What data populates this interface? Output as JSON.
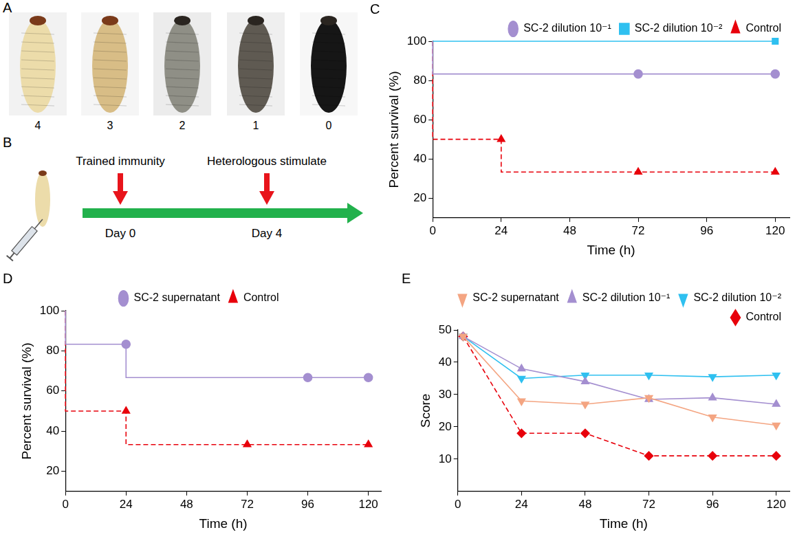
{
  "figure": {
    "A": {
      "panel": "A",
      "scores": [
        4,
        3,
        2,
        1,
        0
      ]
    },
    "B": {
      "panel": "B",
      "events": [
        {
          "label": "Trained immunity",
          "day": "Day 0"
        },
        {
          "label": "Heterologous stimulate",
          "day": "Day 4"
        }
      ]
    }
  },
  "chart_data": [
    {
      "panel": "C",
      "type": "step",
      "x_label": "Time (h)",
      "y_label": "Percent survival (%)",
      "xlim": [
        0,
        125
      ],
      "xticks": [
        0,
        24,
        48,
        72,
        96,
        120
      ],
      "ylim": [
        10,
        100
      ],
      "yticks": [
        20,
        40,
        60,
        80,
        100
      ],
      "grid": false,
      "legend": "top-right",
      "series": [
        {
          "name": "SC-2 dilution 10⁻¹",
          "color": "#a48fd0",
          "marker": "circle",
          "line_style": "solid",
          "x": [
            0,
            72,
            120
          ],
          "values": [
            100,
            83.3,
            83.3
          ]
        },
        {
          "name": "SC-2 dilution 10⁻²",
          "color": "#2fc0f0",
          "marker": "square",
          "line_style": "solid",
          "x": [
            0,
            120
          ],
          "values": [
            100,
            100
          ]
        },
        {
          "name": "Control",
          "color": "#e8000b",
          "marker": "triangle",
          "line_style": "dashed",
          "x": [
            0,
            24,
            72,
            120
          ],
          "values": [
            100,
            50,
            33.3,
            33.3
          ]
        }
      ]
    },
    {
      "panel": "D",
      "type": "step",
      "x_label": "Time (h)",
      "y_label": "Percent survival (%)",
      "xlim": [
        0,
        125
      ],
      "xticks": [
        0,
        24,
        48,
        72,
        96,
        120
      ],
      "ylim": [
        10,
        100
      ],
      "yticks": [
        20,
        40,
        60,
        80,
        100
      ],
      "grid": false,
      "legend": "top",
      "series": [
        {
          "name": "SC-2 supernatant",
          "color": "#a48fd0",
          "marker": "circle",
          "line_style": "solid",
          "x": [
            0,
            24,
            96,
            120
          ],
          "values": [
            100,
            83.3,
            66.7,
            66.7
          ]
        },
        {
          "name": "Control",
          "color": "#e8000b",
          "marker": "triangle",
          "line_style": "dashed",
          "x": [
            0,
            24,
            72,
            120
          ],
          "values": [
            100,
            50,
            33.3,
            33.3
          ]
        }
      ]
    },
    {
      "panel": "E",
      "type": "line",
      "x_label": "Time (h)",
      "y_label": "Score",
      "xlim": [
        0,
        125
      ],
      "xticks": [
        0,
        24,
        48,
        72,
        96,
        120
      ],
      "ylim": [
        0,
        50
      ],
      "yticks": [
        10,
        20,
        30,
        40,
        50
      ],
      "grid": false,
      "legend": "top-right",
      "series": [
        {
          "name": "SC-2 supernatant",
          "color": "#f4a582",
          "marker": "triangle-down",
          "line_style": "solid",
          "x": [
            2,
            24,
            48,
            72,
            96,
            120
          ],
          "values": [
            48,
            28,
            27,
            29,
            23,
            20.5
          ]
        },
        {
          "name": "SC-2 dilution 10⁻¹",
          "color": "#a48fd0",
          "marker": "triangle",
          "line_style": "solid",
          "x": [
            2,
            24,
            48,
            72,
            96,
            120
          ],
          "values": [
            48,
            38,
            34,
            28.5,
            29,
            27
          ]
        },
        {
          "name": "SC-2 dilution 10⁻²",
          "color": "#2fc0f0",
          "marker": "triangle-down",
          "line_style": "solid",
          "x": [
            2,
            24,
            48,
            72,
            96,
            120
          ],
          "values": [
            48,
            35,
            36,
            36,
            35.5,
            36
          ]
        },
        {
          "name": "Control",
          "color": "#e8000b",
          "marker": "diamond",
          "line_style": "dashed",
          "x": [
            2,
            24,
            48,
            72,
            96,
            120
          ],
          "values": [
            48,
            18,
            18,
            11,
            11,
            11
          ]
        }
      ]
    }
  ]
}
